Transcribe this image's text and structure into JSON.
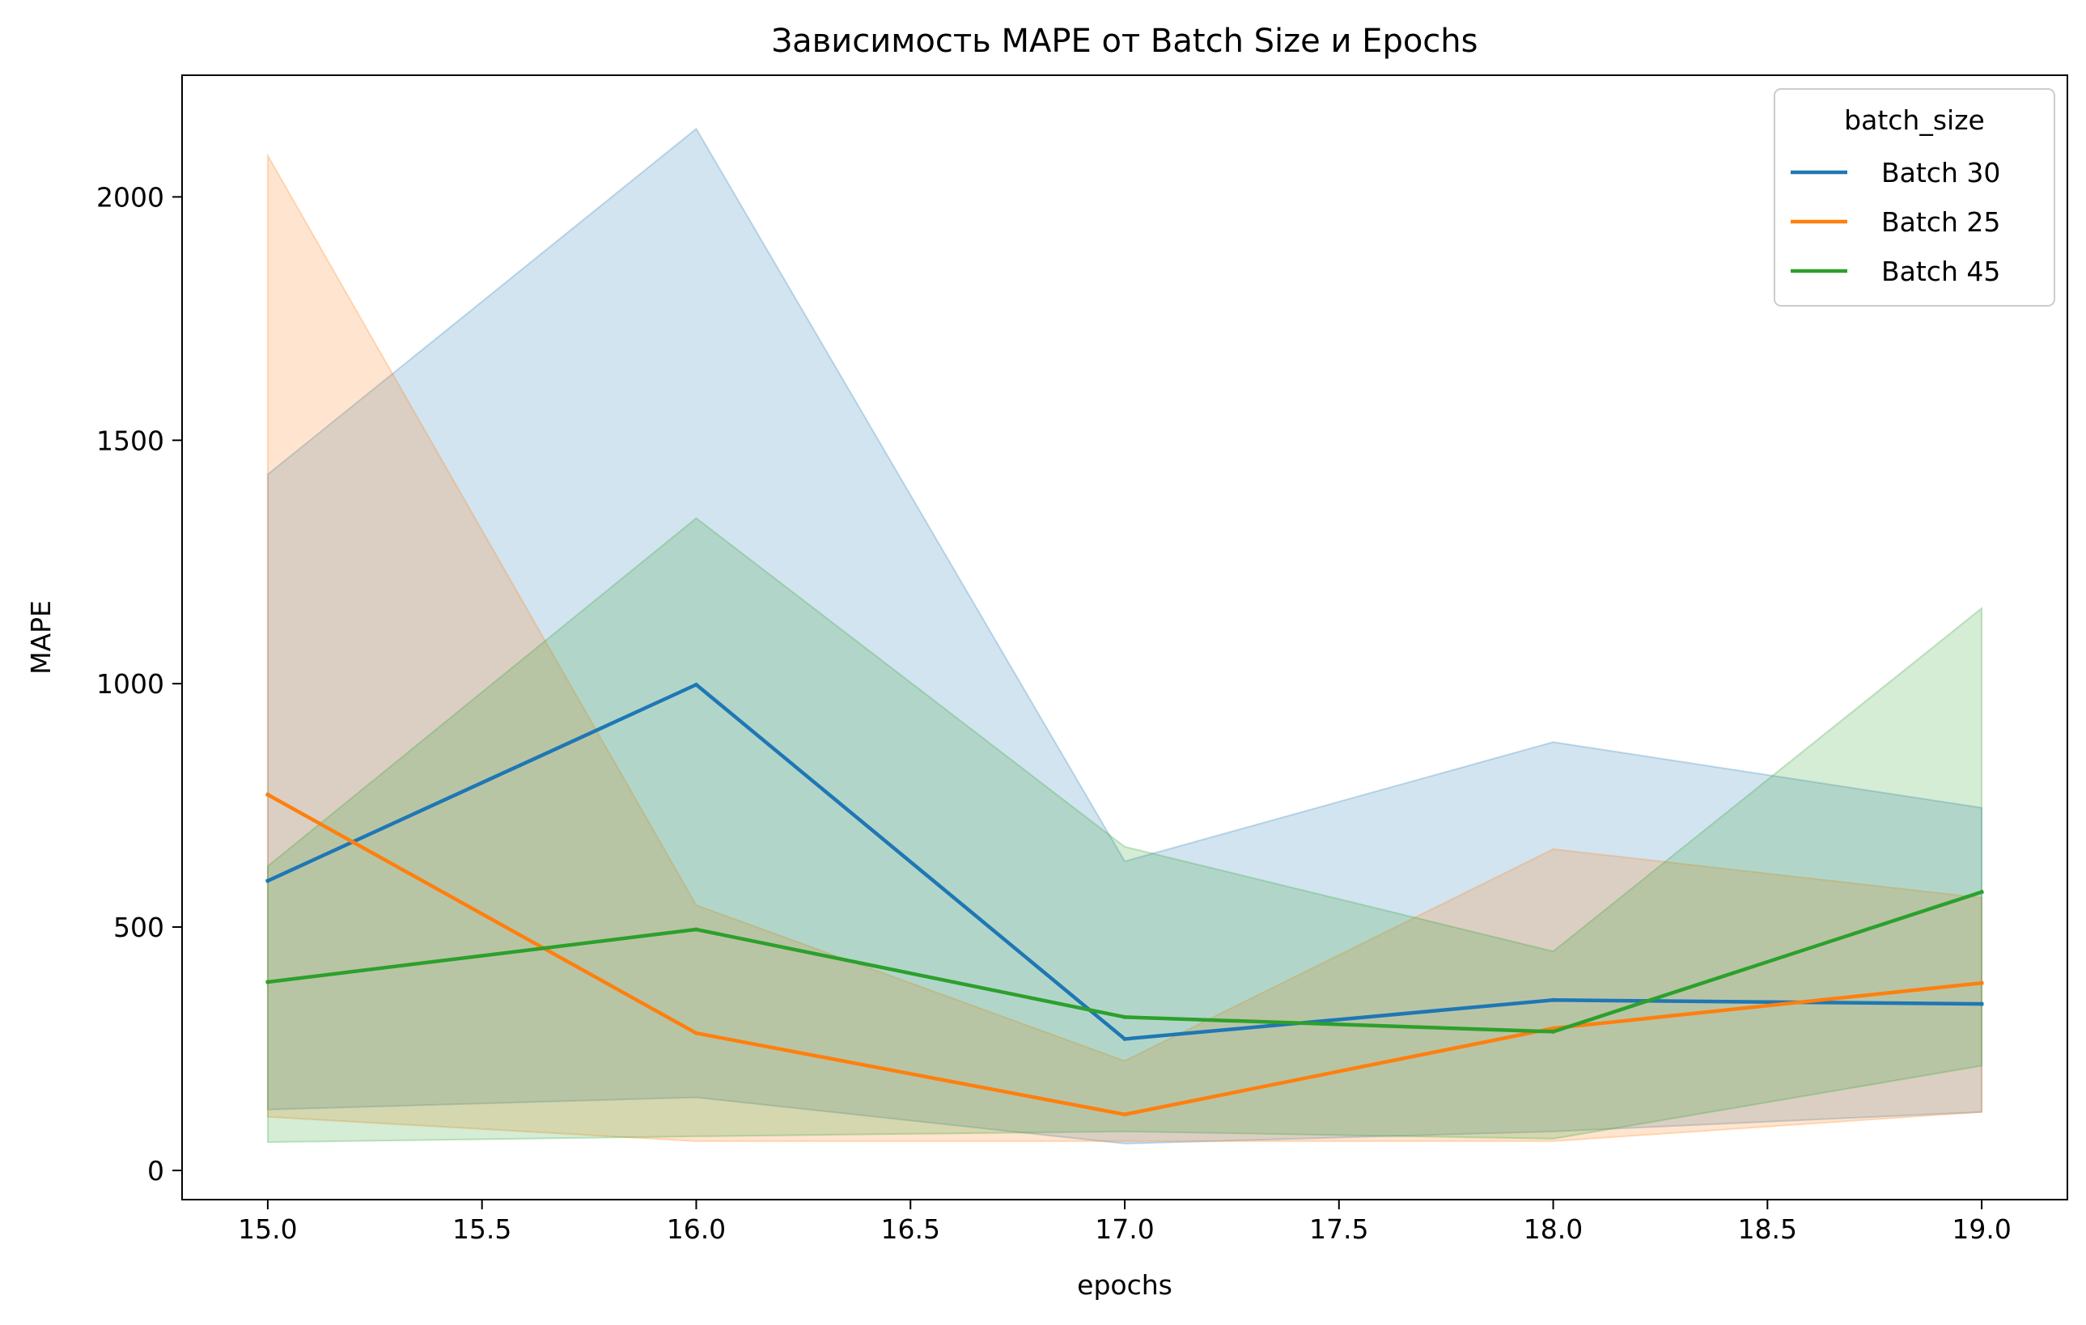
{
  "chart_data": {
    "type": "line",
    "title": "Зависимость MAPE от Batch Size и Epochs",
    "xlabel": "epochs",
    "ylabel": "MAPE",
    "xlim": [
      14.8,
      19.2
    ],
    "ylim": [
      -60,
      2250
    ],
    "xticks": [
      "15.0",
      "15.5",
      "16.0",
      "16.5",
      "17.0",
      "17.5",
      "18.0",
      "18.5",
      "19.0"
    ],
    "yticks": [
      "0",
      "500",
      "1000",
      "1500",
      "2000"
    ],
    "legend": {
      "title": "batch_size",
      "placement": "upper right"
    },
    "x": [
      15,
      16,
      17,
      18,
      19
    ],
    "series": [
      {
        "name": "Batch 30",
        "color": "#1f77b4",
        "values": [
          595,
          998,
          270,
          350,
          342
        ],
        "ci_upper": [
          1430,
          2140,
          635,
          880,
          745
        ],
        "ci_lower": [
          125,
          150,
          55,
          80,
          120
        ]
      },
      {
        "name": "Batch 25",
        "color": "#ff7f0e",
        "values": [
          772,
          282,
          115,
          292,
          385
        ],
        "ci_upper": [
          2085,
          545,
          225,
          660,
          560
        ],
        "ci_lower": [
          110,
          60,
          60,
          60,
          120
        ]
      },
      {
        "name": "Batch 45",
        "color": "#2ca02c",
        "values": [
          387,
          495,
          315,
          285,
          572
        ],
        "ci_upper": [
          625,
          1340,
          665,
          450,
          1155
        ],
        "ci_lower": [
          58,
          70,
          80,
          65,
          215
        ]
      }
    ]
  }
}
